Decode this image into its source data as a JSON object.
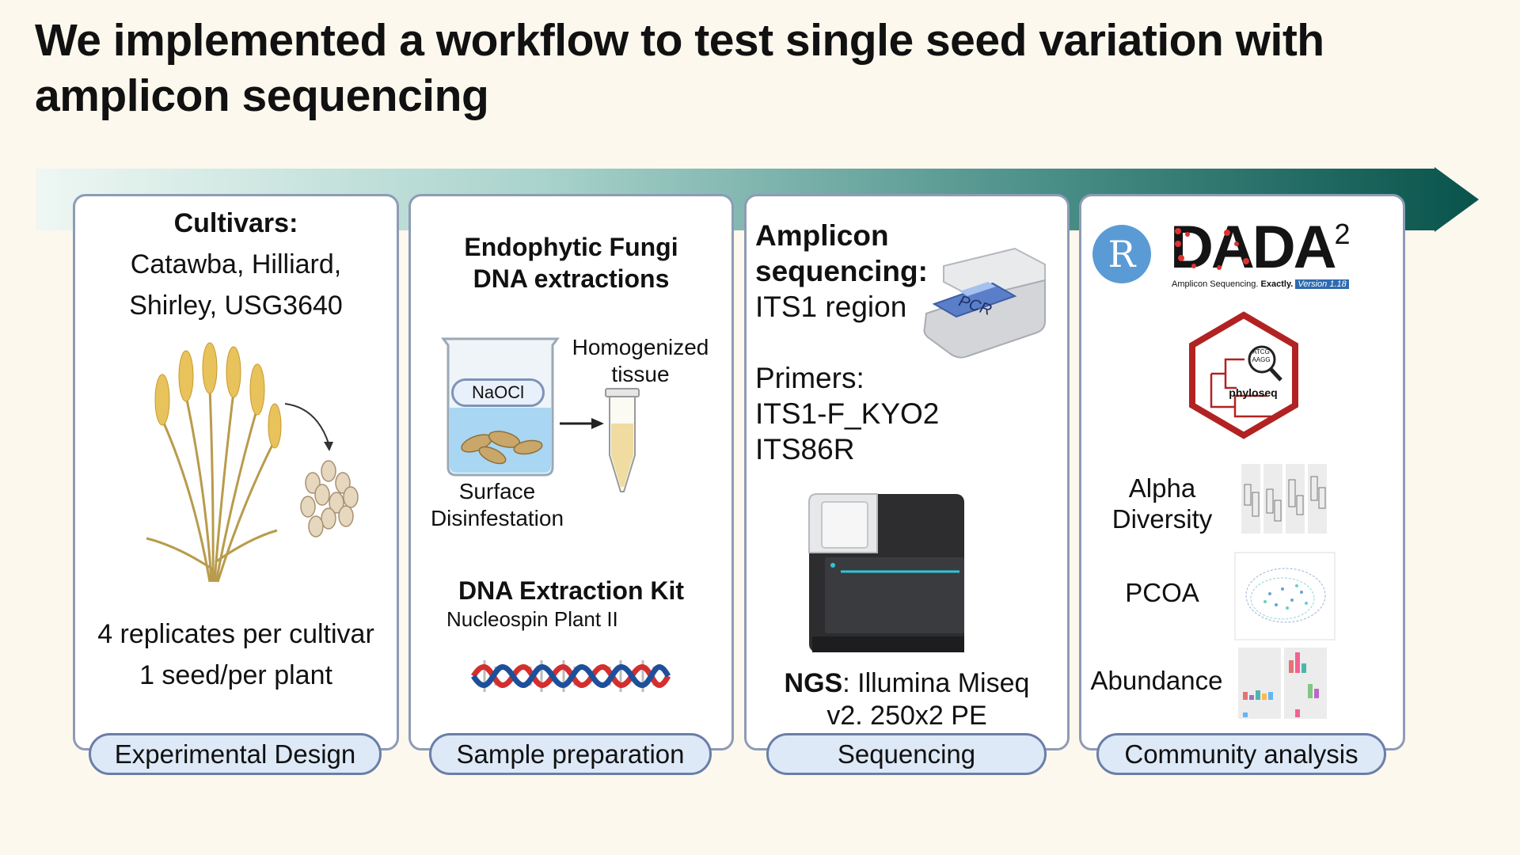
{
  "title": "We implemented a workflow to test single seed variation with amplicon sequencing",
  "panels": {
    "design": {
      "heading": "Cultivars:",
      "cultivars_line1": "Catawba, Hilliard,",
      "cultivars_line2": "Shirley, USG3640",
      "replicates": "4 replicates per cultivar",
      "seeds": "1 seed/per plant",
      "label": "Experimental Design"
    },
    "sample": {
      "heading_line1": "Endophytic Fungi",
      "heading_line2": "DNA extractions",
      "beaker_label": "NaOCl",
      "tube_label_line1": "Homogenized",
      "tube_label_line2": "tissue",
      "step_line1": "Surface",
      "step_line2": "Disinfestation",
      "kit_title": "DNA Extraction Kit",
      "kit_name": "Nucleospin Plant II",
      "label": "Sample preparation"
    },
    "sequencing": {
      "heading_line1": "Amplicon",
      "heading_line2": "sequencing:",
      "region": "ITS1 region",
      "pcr_label": "PCR",
      "primers_heading": "Primers:",
      "primer_forward": "ITS1-F_KYO2",
      "primer_reverse": "ITS86R",
      "ngs_bold": "NGS",
      "ngs_rest": ": Illumina Miseq",
      "ngs_line2": "v2. 250x2 PE",
      "label": "Sequencing"
    },
    "analysis": {
      "r_logo": "R",
      "dada_logo": "DADA",
      "dada_superscript": "2",
      "dada_tagline": "Amplicon Sequencing.",
      "dada_tagline_bold": "Exactly.",
      "dada_version": "Version 1.18",
      "phyloseq_label": "phyloseq",
      "phyloseq_seq1": "ATCG",
      "phyloseq_seq2": "AAGG",
      "alpha_line1": "Alpha",
      "alpha_line2": "Diversity",
      "pcoa": "PCOA",
      "abundance": "Abundance",
      "label": "Community analysis"
    }
  },
  "colors": {
    "arrow_start": "#dff0ec",
    "arrow_end": "#08534b",
    "panel_border": "#8e9bb5",
    "pill_fill": "#dde9f7",
    "pill_border": "#6a7ea8",
    "dna_red": "#d32f2f",
    "dna_blue": "#1e4f9a",
    "phyloseq_red": "#b22222",
    "r_blue": "#5b9bd5"
  }
}
